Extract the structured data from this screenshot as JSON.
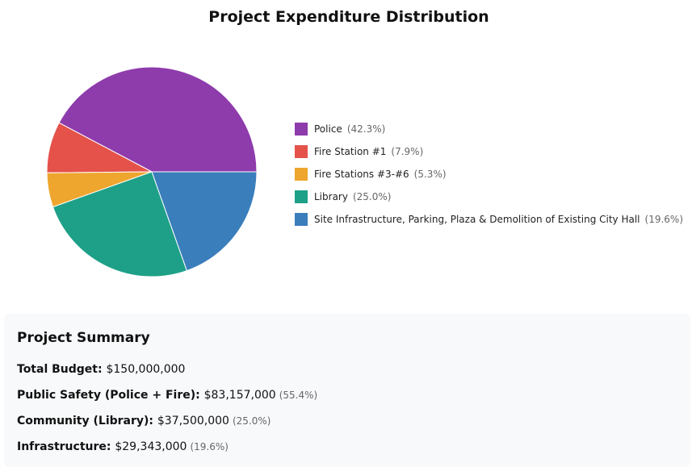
{
  "chart_data": {
    "type": "pie",
    "title": "Project Expenditure Distribution",
    "legend_placement": "right",
    "slices": [
      {
        "label": "Police",
        "value": 42.3,
        "pct_label": "(42.3%)",
        "color": "#8e3bac"
      },
      {
        "label": "Fire Station #1",
        "value": 7.9,
        "pct_label": "(7.9%)",
        "color": "#e4524a"
      },
      {
        "label": "Fire Stations #3-#6",
        "value": 5.3,
        "pct_label": "(5.3%)",
        "color": "#eea62e"
      },
      {
        "label": "Library",
        "value": 25.0,
        "pct_label": "(25.0%)",
        "color": "#1ea088"
      },
      {
        "label": "Site Infrastructure, Parking, Plaza & Demolition of Existing City Hall",
        "value": 19.6,
        "pct_label": "(19.6%)",
        "color": "#3a7ebc"
      }
    ]
  },
  "summary": {
    "title": "Project Summary",
    "rows": [
      {
        "label": "Total Budget:",
        "value": "$150,000,000",
        "pct": ""
      },
      {
        "label": "Public Safety (Police + Fire):",
        "value": "$83,157,000",
        "pct": "(55.4%)"
      },
      {
        "label": "Community (Library):",
        "value": "$37,500,000",
        "pct": "(25.0%)"
      },
      {
        "label": "Infrastructure:",
        "value": "$29,343,000",
        "pct": "(19.6%)"
      }
    ]
  }
}
